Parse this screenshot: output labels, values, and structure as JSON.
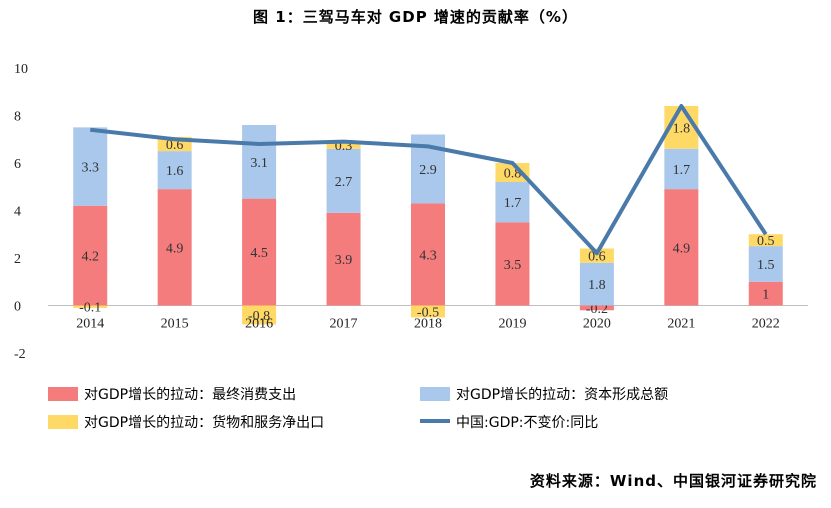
{
  "title": "图 1：三驾马车对 GDP 增速的贡献率（%）",
  "source": "资料来源：Wind、中国银河证券研究院",
  "colors": {
    "consumption": "#F47C7C",
    "capital": "#A9C8EC",
    "net_exports": "#FFD966",
    "gdp_line": "#4A7AAA"
  },
  "chart_data": {
    "type": "bar",
    "stacked": true,
    "categories": [
      "2014",
      "2015",
      "2016",
      "2017",
      "2018",
      "2019",
      "2020",
      "2021",
      "2022"
    ],
    "ylim": [
      -2,
      10
    ],
    "yticks": [
      -2,
      0,
      2,
      4,
      6,
      8,
      10
    ],
    "grid": false,
    "legend_position": "bottom",
    "series": [
      {
        "name": "对GDP增长的拉动：最终消费支出",
        "type": "bar",
        "values": [
          4.2,
          4.9,
          4.5,
          3.9,
          4.3,
          3.5,
          -0.2,
          4.9,
          1
        ],
        "labels": [
          "4.2",
          "4.9",
          "4.5",
          "3.9",
          "4.3",
          "3.5",
          "-0.2",
          "4.9",
          "1"
        ]
      },
      {
        "name": "对GDP增长的拉动：资本形成总额",
        "type": "bar",
        "values": [
          3.3,
          1.6,
          3.1,
          2.7,
          2.9,
          1.7,
          1.8,
          1.7,
          1.5
        ],
        "labels": [
          "3.3",
          "1.6",
          "3.1",
          "2.7",
          "2.9",
          "1.7",
          "1.8",
          "1.7",
          "1.5"
        ]
      },
      {
        "name": "对GDP增长的拉动：货物和服务净出口",
        "type": "bar",
        "values": [
          -0.1,
          0.6,
          -0.8,
          0.3,
          -0.5,
          0.8,
          0.6,
          1.8,
          0.5
        ],
        "labels": [
          "-0.1",
          "0.6",
          "-0.8",
          "0.3",
          "-0.5",
          "0.8",
          "0.6",
          "1.8",
          "0.5"
        ]
      },
      {
        "name": "中国:GDP:不变价:同比",
        "type": "line",
        "values": [
          7.4,
          7.0,
          6.8,
          6.9,
          6.7,
          6.0,
          2.2,
          8.4,
          3.0
        ]
      }
    ]
  }
}
